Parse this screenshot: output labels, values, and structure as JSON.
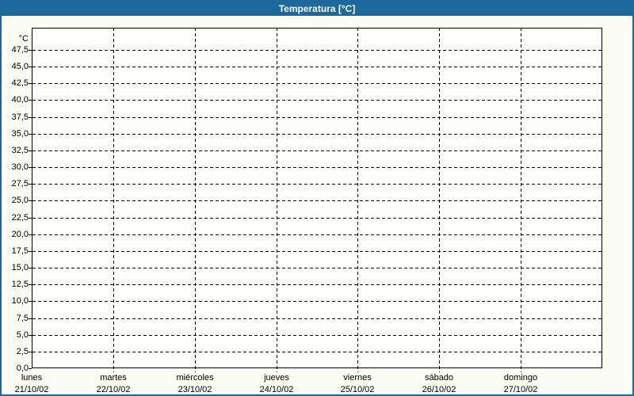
{
  "window": {
    "title": "Temperatura [°C]"
  },
  "chart_data": {
    "type": "line",
    "title": "Temperatura [°C]",
    "series": [],
    "y_axis": {
      "unit_label": "°C",
      "min": 0.0,
      "max": 47.5,
      "step": 2.5,
      "decimal_separator": ",",
      "tick_labels": [
        "0,0",
        "2,5",
        "5,0",
        "7,5",
        "10,0",
        "12,5",
        "15,0",
        "17,5",
        "20,0",
        "22,5",
        "25,0",
        "27,5",
        "30,0",
        "32,5",
        "35,0",
        "37,5",
        "40,0",
        "42,5",
        "45,0",
        "47,5"
      ]
    },
    "x_axis": {
      "tick_labels": [
        {
          "day": "lunes",
          "date": "21/10/02"
        },
        {
          "day": "martes",
          "date": "22/10/02"
        },
        {
          "day": "miércoles",
          "date": "23/10/02"
        },
        {
          "day": "jueves",
          "date": "24/10/02"
        },
        {
          "day": "viernes",
          "date": "25/10/02"
        },
        {
          "day": "sábado",
          "date": "26/10/02"
        },
        {
          "day": "domingo",
          "date": "27/10/02"
        }
      ]
    },
    "grid": {
      "style": "dashed",
      "horizontal": true,
      "vertical": true
    },
    "colors": {
      "titlebar_bg": "#1D689C",
      "title_text": "#FFFFFF",
      "window_border": "#1D689C",
      "window_bg": "#FBFDF5",
      "plot_bg": "#FEFFFB",
      "grid": "#000000",
      "labels": "#000000"
    }
  }
}
